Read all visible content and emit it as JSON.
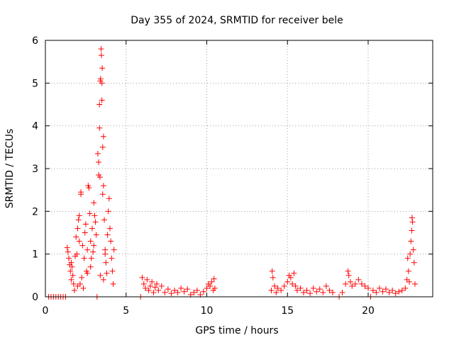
{
  "chart_data": {
    "type": "scatter",
    "title": "Day 355 of 2024, SRMTID for receiver bele",
    "xlabel": "GPS time / hours",
    "ylabel": "SRMTID / TECUs",
    "xlim": [
      0,
      24
    ],
    "ylim": [
      0,
      6
    ],
    "xticks": [
      0,
      5,
      10,
      15,
      20
    ],
    "yticks": [
      0,
      1,
      2,
      3,
      4,
      5,
      6
    ],
    "grid": true,
    "marker": "+",
    "color": "#ff0000",
    "series": [
      {
        "name": "SRMTID",
        "points": [
          [
            0.2,
            0.0
          ],
          [
            0.35,
            0.0
          ],
          [
            0.5,
            0.0
          ],
          [
            0.65,
            0.0
          ],
          [
            0.8,
            0.0
          ],
          [
            0.95,
            0.0
          ],
          [
            1.1,
            0.0
          ],
          [
            1.25,
            0.0
          ],
          [
            1.35,
            1.15
          ],
          [
            1.4,
            1.05
          ],
          [
            1.45,
            0.9
          ],
          [
            1.5,
            0.75
          ],
          [
            1.55,
            0.6
          ],
          [
            1.6,
            0.4
          ],
          [
            1.65,
            0.7
          ],
          [
            1.7,
            0.5
          ],
          [
            1.75,
            0.3
          ],
          [
            1.8,
            0.15
          ],
          [
            1.85,
            0.95
          ],
          [
            1.9,
            1.4
          ],
          [
            1.95,
            1.0
          ],
          [
            2.0,
            1.6
          ],
          [
            2.05,
            1.8
          ],
          [
            2.1,
            1.9
          ],
          [
            2.1,
            1.3
          ],
          [
            2.15,
            0.3
          ],
          [
            2.2,
            2.45
          ],
          [
            2.2,
            2.4
          ],
          [
            2.25,
            0.45
          ],
          [
            2.3,
            1.2
          ],
          [
            2.35,
            0.2
          ],
          [
            2.4,
            0.9
          ],
          [
            2.45,
            1.5
          ],
          [
            2.5,
            1.7
          ],
          [
            2.55,
            0.6
          ],
          [
            2.6,
            1.1
          ],
          [
            2.65,
            2.6
          ],
          [
            2.7,
            2.55
          ],
          [
            2.75,
            1.95
          ],
          [
            2.8,
            1.3
          ],
          [
            2.85,
            0.9
          ],
          [
            2.9,
            1.6
          ],
          [
            2.95,
            1.05
          ],
          [
            3.0,
            2.2
          ],
          [
            3.05,
            1.9
          ],
          [
            3.1,
            1.75
          ],
          [
            3.15,
            1.45
          ],
          [
            3.2,
            0.0
          ],
          [
            3.25,
            3.35
          ],
          [
            3.3,
            2.85
          ],
          [
            3.3,
            3.15
          ],
          [
            3.35,
            4.5
          ],
          [
            3.35,
            3.95
          ],
          [
            3.38,
            2.8
          ],
          [
            3.4,
            5.05
          ],
          [
            3.42,
            5.1
          ],
          [
            3.45,
            5.8
          ],
          [
            3.47,
            5.65
          ],
          [
            3.5,
            5.0
          ],
          [
            3.5,
            4.6
          ],
          [
            3.52,
            5.35
          ],
          [
            3.55,
            3.5
          ],
          [
            3.55,
            2.4
          ],
          [
            3.6,
            3.75
          ],
          [
            3.6,
            2.6
          ],
          [
            3.65,
            1.8
          ],
          [
            3.7,
            1.1
          ],
          [
            3.75,
            0.8
          ],
          [
            3.8,
            0.55
          ],
          [
            3.85,
            1.45
          ],
          [
            3.9,
            2.0
          ],
          [
            3.95,
            2.3
          ],
          [
            4.0,
            1.6
          ],
          [
            4.05,
            1.3
          ],
          [
            4.1,
            0.9
          ],
          [
            4.15,
            0.6
          ],
          [
            4.2,
            0.3
          ],
          [
            4.25,
            1.1
          ],
          [
            3.4,
            0.5
          ],
          [
            3.6,
            0.4
          ],
          [
            2.6,
            0.55
          ],
          [
            2.0,
            0.25
          ],
          [
            1.6,
            0.8
          ],
          [
            2.8,
            0.7
          ],
          [
            3.0,
            1.2
          ],
          [
            3.7,
            1.0
          ],
          [
            5.9,
            0.0
          ],
          [
            6.0,
            0.45
          ],
          [
            6.1,
            0.3
          ],
          [
            6.2,
            0.2
          ],
          [
            6.3,
            0.4
          ],
          [
            6.4,
            0.15
          ],
          [
            6.5,
            0.25
          ],
          [
            6.6,
            0.35
          ],
          [
            6.7,
            0.1
          ],
          [
            6.8,
            0.22
          ],
          [
            6.9,
            0.3
          ],
          [
            7.0,
            0.15
          ],
          [
            7.2,
            0.25
          ],
          [
            7.4,
            0.1
          ],
          [
            7.6,
            0.18
          ],
          [
            7.8,
            0.08
          ],
          [
            8.0,
            0.15
          ],
          [
            8.2,
            0.1
          ],
          [
            8.4,
            0.2
          ],
          [
            8.6,
            0.12
          ],
          [
            8.8,
            0.18
          ],
          [
            9.0,
            0.05
          ],
          [
            9.2,
            0.1
          ],
          [
            9.4,
            0.15
          ],
          [
            9.6,
            0.05
          ],
          [
            9.8,
            0.12
          ],
          [
            10.0,
            0.2
          ],
          [
            10.1,
            0.3
          ],
          [
            10.2,
            0.25
          ],
          [
            10.3,
            0.35
          ],
          [
            10.4,
            0.15
          ],
          [
            10.5,
            0.2
          ],
          [
            10.45,
            0.42
          ],
          [
            14.0,
            0.15
          ],
          [
            14.05,
            0.6
          ],
          [
            14.1,
            0.45
          ],
          [
            14.2,
            0.25
          ],
          [
            14.3,
            0.1
          ],
          [
            14.4,
            0.2
          ],
          [
            14.6,
            0.15
          ],
          [
            14.8,
            0.25
          ],
          [
            15.0,
            0.35
          ],
          [
            15.1,
            0.5
          ],
          [
            15.2,
            0.45
          ],
          [
            15.3,
            0.3
          ],
          [
            15.4,
            0.55
          ],
          [
            15.5,
            0.25
          ],
          [
            15.6,
            0.15
          ],
          [
            15.8,
            0.2
          ],
          [
            16.0,
            0.1
          ],
          [
            16.2,
            0.15
          ],
          [
            16.4,
            0.08
          ],
          [
            16.6,
            0.2
          ],
          [
            16.8,
            0.12
          ],
          [
            17.0,
            0.18
          ],
          [
            17.2,
            0.1
          ],
          [
            17.4,
            0.25
          ],
          [
            17.6,
            0.15
          ],
          [
            17.8,
            0.1
          ],
          [
            18.2,
            0.0
          ],
          [
            18.4,
            0.1
          ],
          [
            18.6,
            0.3
          ],
          [
            18.75,
            0.6
          ],
          [
            18.8,
            0.5
          ],
          [
            18.9,
            0.35
          ],
          [
            19.0,
            0.25
          ],
          [
            19.2,
            0.3
          ],
          [
            19.4,
            0.4
          ],
          [
            19.6,
            0.3
          ],
          [
            19.8,
            0.25
          ],
          [
            20.0,
            0.2
          ],
          [
            20.15,
            0.0
          ],
          [
            20.3,
            0.15
          ],
          [
            20.5,
            0.1
          ],
          [
            20.7,
            0.2
          ],
          [
            20.9,
            0.12
          ],
          [
            21.1,
            0.18
          ],
          [
            21.3,
            0.1
          ],
          [
            21.5,
            0.15
          ],
          [
            21.7,
            0.08
          ],
          [
            21.9,
            0.12
          ],
          [
            22.1,
            0.15
          ],
          [
            22.3,
            0.2
          ],
          [
            22.4,
            0.4
          ],
          [
            22.45,
            0.9
          ],
          [
            22.5,
            0.6
          ],
          [
            22.55,
            0.35
          ],
          [
            22.6,
            1.0
          ],
          [
            22.65,
            1.3
          ],
          [
            22.7,
            1.55
          ],
          [
            22.72,
            1.85
          ],
          [
            22.75,
            1.75
          ],
          [
            22.8,
            1.1
          ],
          [
            22.85,
            0.8
          ],
          [
            22.9,
            0.3
          ]
        ]
      }
    ]
  }
}
